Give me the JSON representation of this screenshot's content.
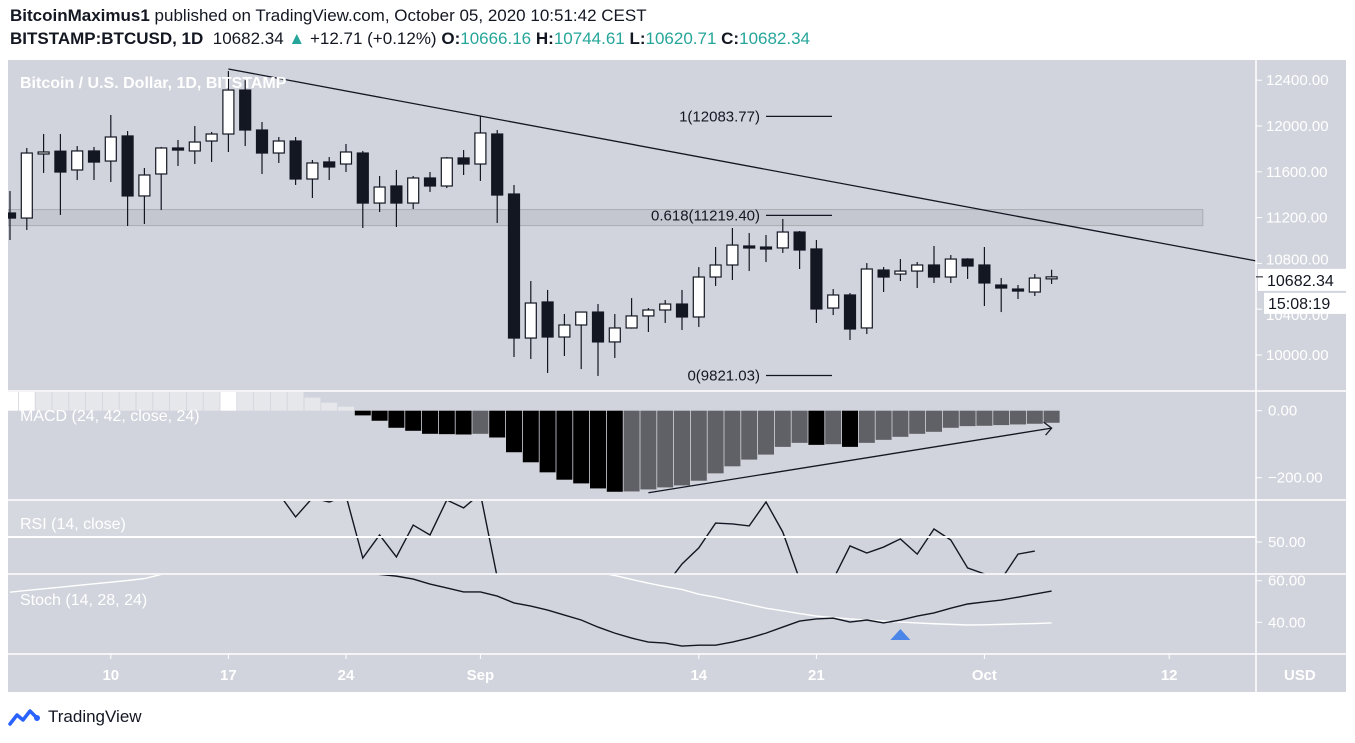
{
  "header": {
    "author": "BitcoinMaximus1",
    "published": "published on TradingView.com, October 05, 2020 10:51:42 CEST",
    "symbol": "BITSTAMP:BTCUSD, 1D",
    "last": "10682.34",
    "change": "+12.71 (+0.12%)",
    "o_label": "O:",
    "o": "10666.16",
    "h_label": "H:",
    "h": "10744.61",
    "l_label": "L:",
    "l": "10620.71",
    "c_label": "C:",
    "c": "10682.34"
  },
  "colors": {
    "background": "#d1d4dc",
    "up_candle": "#ffffff",
    "down_candle": "#131722",
    "accent_teal": "#26a69a",
    "signal_blue": "#4a86e8",
    "macd_pos_rising": "#ffffff",
    "macd_pos_falling": "#e6e7eb",
    "macd_neg_falling": "#000000",
    "macd_neg_rising": "#606166"
  },
  "footer": {
    "brand": "TradingView",
    "icon": "tradingview-logo-icon"
  },
  "chart_data": [
    {
      "type": "candlestick",
      "title": "Bitcoin / U.S. Dollar, 1D, BITSTAMP",
      "currency": "USD",
      "y_ticks": [
        "12400.00",
        "12000.00",
        "11600.00",
        "11200.00",
        "10800.00",
        "10400.00",
        "10000.00"
      ],
      "x_ticks": [
        {
          "label": "10",
          "date": "2020-08-10"
        },
        {
          "label": "17",
          "date": "2020-08-17"
        },
        {
          "label": "24",
          "date": "2020-08-24"
        },
        {
          "label": "Sep",
          "date": "2020-09-01"
        },
        {
          "label": "14",
          "date": "2020-09-14"
        },
        {
          "label": "21",
          "date": "2020-09-21"
        },
        {
          "label": "Oct",
          "date": "2020-10-01"
        },
        {
          "label": "12",
          "date": "2020-10-12"
        }
      ],
      "price_label": "10682.34",
      "countdown": "15:08:19",
      "columns": [
        "date",
        "open",
        "high",
        "low",
        "close"
      ],
      "candles": [
        [
          "2020-08-04",
          11240,
          11432,
          11004,
          11196
        ],
        [
          "2020-08-05",
          11196,
          11808,
          11092,
          11764
        ],
        [
          "2020-08-06",
          11764,
          11930,
          11590,
          11773
        ],
        [
          "2020-08-07",
          11780,
          11930,
          11223,
          11598
        ],
        [
          "2020-08-08",
          11616,
          11825,
          11528,
          11782
        ],
        [
          "2020-08-09",
          11782,
          11817,
          11528,
          11685
        ],
        [
          "2020-08-10",
          11694,
          12096,
          11511,
          11904
        ],
        [
          "2020-08-11",
          11913,
          11956,
          11127,
          11389
        ],
        [
          "2020-08-12",
          11389,
          11633,
          11144,
          11572
        ],
        [
          "2020-08-13",
          11581,
          11817,
          11266,
          11808
        ],
        [
          "2020-08-14",
          11808,
          11878,
          11651,
          11790
        ],
        [
          "2020-08-15",
          11782,
          12000,
          11668,
          11860
        ],
        [
          "2020-08-16",
          11869,
          11948,
          11686,
          11930
        ],
        [
          "2020-08-17",
          11930,
          12480,
          11773,
          12314
        ],
        [
          "2020-08-18",
          12314,
          12400,
          11825,
          11965
        ],
        [
          "2020-08-19",
          11965,
          12035,
          11581,
          11764
        ],
        [
          "2020-08-20",
          11764,
          11904,
          11677,
          11869
        ],
        [
          "2020-08-21",
          11869,
          11904,
          11485,
          11537
        ],
        [
          "2020-08-22",
          11537,
          11703,
          11371,
          11677
        ],
        [
          "2020-08-23",
          11686,
          11729,
          11528,
          11642
        ],
        [
          "2020-08-24",
          11668,
          11843,
          11598,
          11773
        ],
        [
          "2020-08-25",
          11764,
          11782,
          11109,
          11327
        ],
        [
          "2020-08-26",
          11327,
          11563,
          11249,
          11467
        ],
        [
          "2020-08-27",
          11476,
          11616,
          11118,
          11327
        ],
        [
          "2020-08-28",
          11327,
          11563,
          11275,
          11546
        ],
        [
          "2020-08-29",
          11546,
          11598,
          11424,
          11476
        ],
        [
          "2020-08-30",
          11476,
          11729,
          11458,
          11721
        ],
        [
          "2020-08-31",
          11721,
          11790,
          11572,
          11668
        ],
        [
          "2020-09-01",
          11668,
          12087,
          11520,
          11939
        ],
        [
          "2020-09-02",
          11930,
          11965,
          11153,
          11397
        ],
        [
          "2020-09-03",
          11406,
          11485,
          9982,
          10148
        ],
        [
          "2020-09-04",
          10148,
          10646,
          9965,
          10454
        ],
        [
          "2020-09-05",
          10463,
          10568,
          9843,
          10157
        ],
        [
          "2020-09-06",
          10157,
          10358,
          9991,
          10262
        ],
        [
          "2020-09-07",
          10262,
          10380,
          9877,
          10375
        ],
        [
          "2020-09-08",
          10375,
          10445,
          9817,
          10114
        ],
        [
          "2020-09-09",
          10114,
          10358,
          9974,
          10236
        ],
        [
          "2020-09-10",
          10236,
          10497,
          10230,
          10341
        ],
        [
          "2020-09-11",
          10341,
          10410,
          10201,
          10393
        ],
        [
          "2020-09-12",
          10393,
          10480,
          10280,
          10445
        ],
        [
          "2020-09-13",
          10445,
          10568,
          10218,
          10332
        ],
        [
          "2020-09-14",
          10332,
          10768,
          10245,
          10681
        ],
        [
          "2020-09-15",
          10681,
          10943,
          10603,
          10786
        ],
        [
          "2020-09-16",
          10786,
          11109,
          10655,
          10960
        ],
        [
          "2020-09-17",
          10952,
          11065,
          10734,
          10943
        ],
        [
          "2020-09-18",
          10943,
          11048,
          10812,
          10935
        ],
        [
          "2020-09-19",
          10935,
          11188,
          10891,
          11074
        ],
        [
          "2020-09-20",
          11074,
          11083,
          10751,
          10917
        ],
        [
          "2020-09-21",
          10926,
          11004,
          10280,
          10402
        ],
        [
          "2020-09-22",
          10410,
          10576,
          10349,
          10524
        ],
        [
          "2020-09-23",
          10524,
          10541,
          10131,
          10227
        ],
        [
          "2020-09-24",
          10236,
          10803,
          10183,
          10751
        ],
        [
          "2020-09-25",
          10742,
          10768,
          10550,
          10681
        ],
        [
          "2020-09-26",
          10707,
          10838,
          10646,
          10733
        ],
        [
          "2020-09-27",
          10733,
          10812,
          10585,
          10786
        ],
        [
          "2020-09-28",
          10786,
          10952,
          10629,
          10681
        ],
        [
          "2020-09-29",
          10681,
          10873,
          10629,
          10838
        ],
        [
          "2020-09-30",
          10838,
          10845,
          10664,
          10777
        ],
        [
          "2020-10-01",
          10786,
          10943,
          10428,
          10629
        ],
        [
          "2020-10-02",
          10611,
          10672,
          10375,
          10585
        ],
        [
          "2020-10-03",
          10576,
          10611,
          10489,
          10559
        ],
        [
          "2020-10-04",
          10550,
          10707,
          10515,
          10672
        ],
        [
          "2020-10-05",
          10666.16,
          10744.61,
          10620.71,
          10682.34
        ]
      ],
      "fib_levels": [
        {
          "label": "1(12083.77)",
          "price": 12083.77
        },
        {
          "label": "0.618(11219.40)",
          "price": 11219.4
        },
        {
          "label": "0(9821.03)",
          "price": 9821.03
        }
      ],
      "trendline": {
        "from": {
          "date": "2020-08-17",
          "price": 12498
        },
        "to": {
          "date": "2020-09-01",
          "price": 12087
        },
        "extend": "right"
      },
      "zone": {
        "from_date": "2020-08-04",
        "to_date": "2020-10-14",
        "low": 11130,
        "high": 11270
      }
    },
    {
      "type": "bar",
      "title": "MACD (24, 42, close, 24)",
      "y_ticks": [
        {
          "label": "0.00",
          "value": 0
        },
        {
          "label": "−200.00",
          "value": -200
        }
      ],
      "start_date": "2020-08-04",
      "histogram": [
        150,
        160,
        155,
        150,
        145,
        140,
        135,
        130,
        125,
        120,
        115,
        110,
        105,
        115,
        110,
        100,
        85,
        70,
        39,
        24,
        12,
        -14,
        -30,
        -51,
        -60,
        -69,
        -70,
        -71,
        -69,
        -80,
        -124,
        -154,
        -184,
        -206,
        -217,
        -232,
        -242,
        -241,
        -235,
        -229,
        -223,
        -209,
        -187,
        -166,
        -146,
        -131,
        -108,
        -96,
        -102,
        -100,
        -108,
        -96,
        -87,
        -78,
        -69,
        -63,
        -51,
        -46,
        -45,
        -43,
        -41,
        -39,
        -36
      ],
      "trendline": {
        "from": {
          "date": "2020-09-11",
          "value": -245
        },
        "to": {
          "date": "2020-10-05",
          "value": -52
        },
        "arrow": true
      }
    },
    {
      "type": "line",
      "title": "RSI (14, close)",
      "y_ticks": [
        {
          "label": "50.00",
          "value": 50
        }
      ],
      "start_date": "2020-08-04",
      "values": [
        null,
        null,
        null,
        null,
        null,
        null,
        null,
        null,
        null,
        null,
        null,
        null,
        null,
        null,
        null,
        null,
        72,
        61.4,
        70,
        68.2,
        71,
        42.7,
        53.2,
        43.2,
        57.7,
        53.2,
        69.1,
        65.5,
        72,
        34,
        null,
        null,
        null,
        null,
        null,
        null,
        null,
        null,
        null,
        30,
        40,
        47.3,
        58.6,
        58.2,
        57.3,
        68.2,
        54.5,
        33,
        null,
        33,
        48.2,
        45,
        47.7,
        51.4,
        44.5,
        55.9,
        50.9,
        38.2,
        35.5,
        33,
        44.5,
        45.9
      ]
    },
    {
      "type": "line",
      "title": "Stoch (14, 28, 24)",
      "y_ticks": [
        {
          "label": "60.00",
          "value": 60
        },
        {
          "label": "40.00",
          "value": 40
        }
      ],
      "start_date": "2020-08-04",
      "series": [
        {
          "values": [
            null,
            null,
            null,
            null,
            null,
            null,
            null,
            null,
            null,
            null,
            null,
            null,
            null,
            null,
            null,
            null,
            null,
            null,
            null,
            null,
            null,
            64,
            63,
            62.2,
            60.8,
            58.4,
            56.5,
            54.6,
            54.6,
            52.6,
            49.3,
            47.8,
            45.9,
            43.5,
            41.1,
            37.7,
            34.8,
            32.4,
            30.5,
            30.0,
            28.6,
            29.0,
            29.0,
            30.5,
            32.4,
            34.8,
            37.7,
            40.6,
            41.6,
            42.0,
            40.1,
            41.1,
            39.7,
            41.1,
            43.0,
            44.5,
            46.8,
            48.8,
            49.8,
            50.7,
            52.1,
            53.6,
            55.0
          ]
        },
        {
          "values": [
            54.5,
            55.3,
            56.1,
            56.9,
            57.7,
            58.5,
            59.3,
            60.1,
            61,
            63,
            null,
            null,
            null,
            null,
            null,
            null,
            null,
            null,
            null,
            null,
            null,
            null,
            null,
            null,
            null,
            null,
            null,
            null,
            null,
            null,
            null,
            null,
            null,
            null,
            null,
            64,
            62.5,
            60.6,
            58.8,
            57.2,
            55.8,
            53.5,
            52.1,
            50.3,
            48.5,
            46.8,
            45.5,
            44.2,
            43,
            42.3,
            41.6,
            41.1,
            40.6,
            40.1,
            39.7,
            39.3,
            39,
            38.7,
            38.8,
            39,
            39.2,
            39.4,
            39.7
          ]
        }
      ],
      "signal": {
        "date": "2020-09-26",
        "type": "cross-up",
        "icon": "triangle-up-icon"
      }
    }
  ]
}
